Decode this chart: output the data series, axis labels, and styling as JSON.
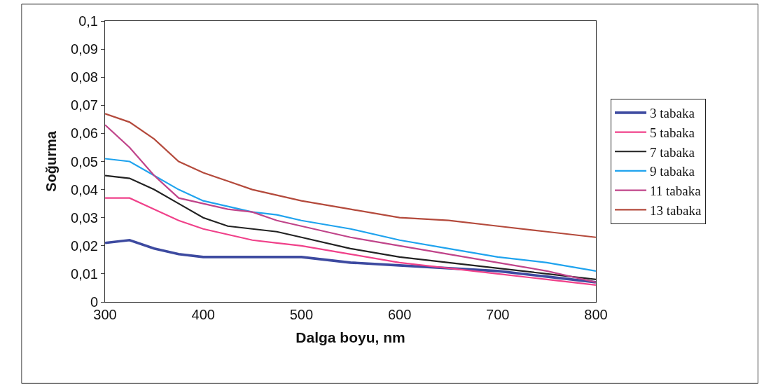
{
  "chart_data": {
    "type": "line",
    "xlabel": "Dalga boyu, nm",
    "ylabel": "Soğurma",
    "x": [
      300,
      325,
      350,
      375,
      400,
      425,
      450,
      475,
      500,
      550,
      600,
      650,
      700,
      750,
      800
    ],
    "series": [
      {
        "name": "3 tabaka",
        "color": "#3d4aa0",
        "values": [
          0.021,
          0.022,
          0.019,
          0.017,
          0.016,
          0.016,
          0.016,
          0.016,
          0.016,
          0.014,
          0.013,
          0.012,
          0.011,
          0.009,
          0.007
        ]
      },
      {
        "name": "5 tabaka",
        "color": "#f0418a",
        "values": [
          0.037,
          0.037,
          0.033,
          0.029,
          0.026,
          0.024,
          0.022,
          0.021,
          0.02,
          0.017,
          0.014,
          0.012,
          0.01,
          0.008,
          0.006
        ]
      },
      {
        "name": "7 tabaka",
        "color": "#222222",
        "values": [
          0.045,
          0.044,
          0.04,
          0.035,
          0.03,
          0.027,
          0.026,
          0.025,
          0.023,
          0.019,
          0.016,
          0.014,
          0.012,
          0.01,
          0.008
        ]
      },
      {
        "name": "9 tabaka",
        "color": "#1fa3ee",
        "values": [
          0.051,
          0.05,
          0.045,
          0.04,
          0.036,
          0.034,
          0.032,
          0.031,
          0.029,
          0.026,
          0.022,
          0.019,
          0.016,
          0.014,
          0.011
        ]
      },
      {
        "name": "11 tabaka",
        "color": "#c0448a",
        "values": [
          0.063,
          0.055,
          0.045,
          0.037,
          0.035,
          0.033,
          0.032,
          0.029,
          0.027,
          0.023,
          0.02,
          0.017,
          0.014,
          0.011,
          0.007
        ]
      },
      {
        "name": "13 tabaka",
        "color": "#b44a3c",
        "values": [
          0.067,
          0.064,
          0.058,
          0.05,
          0.046,
          0.043,
          0.04,
          0.038,
          0.036,
          0.033,
          0.03,
          0.029,
          0.027,
          0.025,
          0.023
        ]
      }
    ],
    "xlim": [
      300,
      800
    ],
    "xticks": [
      300,
      400,
      500,
      600,
      700,
      800
    ],
    "ylim": [
      0,
      0.1
    ],
    "yticks": [
      {
        "value": 0,
        "label": "0"
      },
      {
        "value": 0.01,
        "label": "0,01"
      },
      {
        "value": 0.02,
        "label": "0,02"
      },
      {
        "value": 0.03,
        "label": "0,03"
      },
      {
        "value": 0.04,
        "label": "0,04"
      },
      {
        "value": 0.05,
        "label": "0,05"
      },
      {
        "value": 0.06,
        "label": "0,06"
      },
      {
        "value": 0.07,
        "label": "0,07"
      },
      {
        "value": 0.08,
        "label": "0,08"
      },
      {
        "value": 0.09,
        "label": "0,09"
      },
      {
        "value": 0.1,
        "label": "0,1"
      }
    ],
    "legend": "right",
    "marker": "none",
    "line_style": "solid"
  }
}
